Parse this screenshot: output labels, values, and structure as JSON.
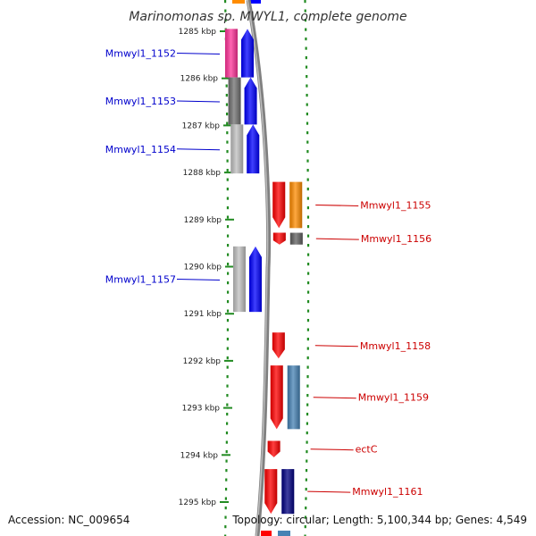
{
  "title": "Marinomonas sp. MWYL1, complete genome",
  "accession": "Accession: NC_009654",
  "summary": "Topology: circular; Length: 5,100,344 bp; Genes: 4,549",
  "colors": {
    "label_left": "#0000cc",
    "label_right": "#cc0000",
    "backbone": "#808080",
    "dotted_ring": "#228b22",
    "tick": "#228b22",
    "forward_gene": "#0000ff",
    "reverse_gene": "#ff0000"
  },
  "ruler": {
    "unit": "kbp",
    "ticks": [
      "1285 kbp",
      "1286 kbp",
      "1287 kbp",
      "1288 kbp",
      "1289 kbp",
      "1290 kbp",
      "1291 kbp",
      "1292 kbp",
      "1293 kbp",
      "1294 kbp",
      "1295 kbp"
    ]
  },
  "genes": [
    {
      "label": "Mmwyl1_1152",
      "strand": "forward",
      "start_kbp": 1284.95,
      "end_kbp": 1285.98,
      "cog_color": "#ff3399"
    },
    {
      "label": "Mmwyl1_1153",
      "strand": "forward",
      "start_kbp": 1285.98,
      "end_kbp": 1286.98,
      "cog_color": "#707070"
    },
    {
      "label": "Mmwyl1_1154",
      "strand": "forward",
      "start_kbp": 1286.98,
      "end_kbp": 1288.02,
      "cog_color": "#c0c0c0"
    },
    {
      "label": "Mmwyl1_1155",
      "strand": "reverse",
      "start_kbp": 1288.2,
      "end_kbp": 1289.18,
      "cog_color": "#ff8c00"
    },
    {
      "label": "Mmwyl1_1156",
      "strand": "reverse",
      "start_kbp": 1289.28,
      "end_kbp": 1289.53,
      "cog_color": "#606060"
    },
    {
      "label": "Mmwyl1_1157",
      "strand": "forward",
      "start_kbp": 1289.57,
      "end_kbp": 1290.96,
      "cog_color": "#c0c0c0"
    },
    {
      "label": "Mmwyl1_1158",
      "strand": "reverse",
      "start_kbp": 1291.4,
      "end_kbp": 1291.95,
      "cog_color": null
    },
    {
      "label": "Mmwyl1_1159",
      "strand": "reverse",
      "start_kbp": 1292.1,
      "end_kbp": 1293.45,
      "cog_color": "#4682b4"
    },
    {
      "label": "ectC",
      "strand": "reverse",
      "start_kbp": 1293.7,
      "end_kbp": 1294.05,
      "cog_color": null
    },
    {
      "label": "Mmwyl1_1161",
      "strand": "reverse",
      "start_kbp": 1294.3,
      "end_kbp": 1295.25,
      "cog_color": "#000080"
    }
  ]
}
